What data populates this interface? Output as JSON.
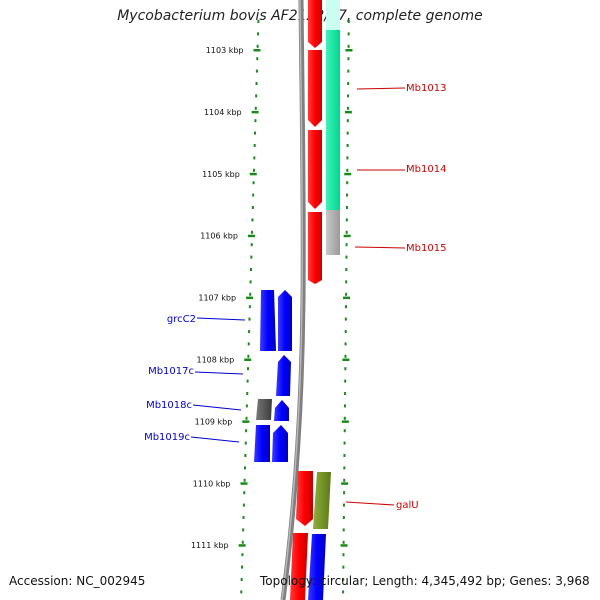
{
  "title": "Mycobacterium bovis AF2122/97, complete genome",
  "accession": "Accession: NC_002945",
  "summary": "Topology: circular; Length: 4,345,492 bp; Genes: 3,968",
  "ticks": [
    "1103 kbp",
    "1104 kbp",
    "1105 kbp",
    "1106 kbp",
    "1107 kbp",
    "1108 kbp",
    "1109 kbp",
    "1110 kbp",
    "1111 kbp"
  ],
  "forward_genes": [
    "Mb1013",
    "Mb1014",
    "Mb1015",
    "galU"
  ],
  "reverse_genes": [
    "grcC2",
    "Mb1017c",
    "Mb1018c",
    "Mb1019c"
  ],
  "colors": {
    "cds_red": "#ff0000",
    "cds_blue": "#0000ff",
    "gc_green": "#00e8a0",
    "pseudo_grey": "#aaaaaa",
    "olive": "#6b8e23",
    "dark_grey": "#555555",
    "tick_green": "#1a8a1a",
    "label_red": "#cc0000",
    "label_blue": "#0000cc"
  }
}
